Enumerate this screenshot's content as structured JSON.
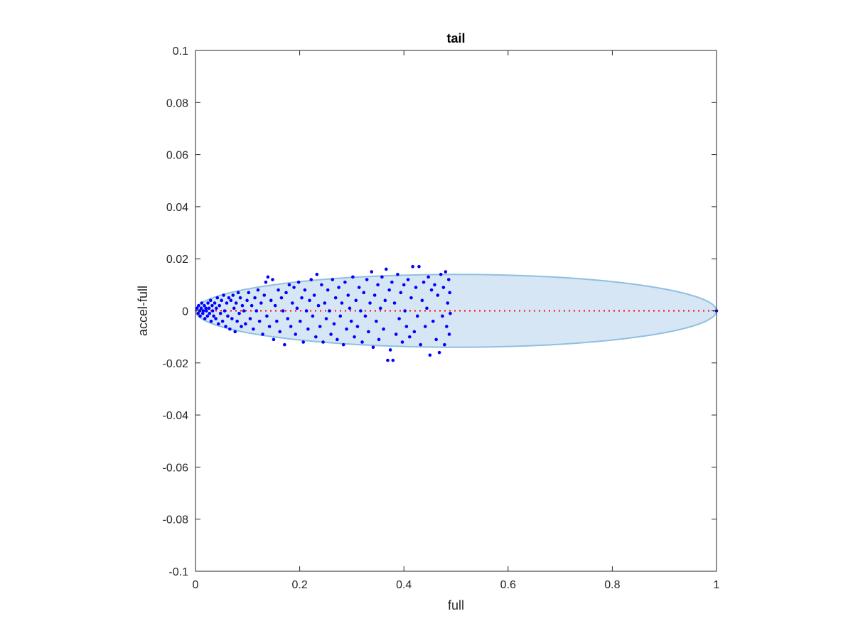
{
  "chart_data": {
    "type": "scatter",
    "title": "tail",
    "xlabel": "full",
    "ylabel": "accel-full",
    "xlim": [
      0,
      1
    ],
    "ylim": [
      -0.1,
      0.1
    ],
    "x_ticks": [
      0,
      0.2,
      0.4,
      0.6,
      0.8,
      1
    ],
    "x_tick_labels": [
      "0",
      "0.2",
      "0.4",
      "0.6",
      "0.8",
      "1"
    ],
    "y_ticks": [
      -0.1,
      -0.08,
      -0.06,
      -0.04,
      -0.02,
      0,
      0.02,
      0.04,
      0.06,
      0.08,
      0.1
    ],
    "y_tick_labels": [
      "-0.1",
      "-0.08",
      "-0.06",
      "-0.04",
      "-0.02",
      "0",
      "0.02",
      "0.04",
      "0.06",
      "0.08",
      "0.1"
    ],
    "grid": false,
    "box": true,
    "ellipse": {
      "center": [
        0.5,
        0
      ],
      "radius_x": 0.5,
      "radius_y": 0.014,
      "fill": "#d6e6f4",
      "stroke": "#8fbfe0"
    },
    "reference_line": {
      "y": 0,
      "x_range": [
        0,
        1
      ],
      "color": "#ff0000",
      "style": "dotted"
    },
    "series": [
      {
        "color": "#0000ff",
        "points": [
          [
            0.003,
            0.001
          ],
          [
            0.005,
            -0.001
          ],
          [
            0.006,
            0.002
          ],
          [
            0.008,
            0.0
          ],
          [
            0.009,
            -0.002
          ],
          [
            0.011,
            0.001
          ],
          [
            0.012,
            0.003
          ],
          [
            0.014,
            -0.001
          ],
          [
            0.015,
            0.0
          ],
          [
            0.017,
            0.002
          ],
          [
            0.018,
            -0.003
          ],
          [
            0.02,
            0.001
          ],
          [
            0.021,
            0.0
          ],
          [
            0.023,
            -0.002
          ],
          [
            0.024,
            0.003
          ],
          [
            0.026,
            0.001
          ],
          [
            0.027,
            -0.001
          ],
          [
            0.029,
            0.004
          ],
          [
            0.03,
            -0.004
          ],
          [
            0.032,
            0.002
          ],
          [
            0.033,
            0.0
          ],
          [
            0.035,
            -0.002
          ],
          [
            0.037,
            0.003
          ],
          [
            0.039,
            -0.003
          ],
          [
            0.04,
            0.001
          ],
          [
            0.042,
            0.005
          ],
          [
            0.044,
            -0.005
          ],
          [
            0.046,
            0.002
          ],
          [
            0.048,
            -0.001
          ],
          [
            0.05,
            0.004
          ],
          [
            0.052,
            -0.004
          ],
          [
            0.054,
            0.006
          ],
          [
            0.056,
            0.0
          ],
          [
            0.058,
            -0.006
          ],
          [
            0.06,
            0.003
          ],
          [
            0.062,
            -0.002
          ],
          [
            0.064,
            0.005
          ],
          [
            0.066,
            -0.007
          ],
          [
            0.068,
            0.004
          ],
          [
            0.07,
            -0.003
          ],
          [
            0.072,
            0.006
          ],
          [
            0.074,
            0.001
          ],
          [
            0.076,
            -0.008
          ],
          [
            0.078,
            0.003
          ],
          [
            0.08,
            -0.004
          ],
          [
            0.082,
            0.007
          ],
          [
            0.084,
            -0.001
          ],
          [
            0.086,
            0.005
          ],
          [
            0.088,
            -0.006
          ],
          [
            0.09,
            0.002
          ],
          [
            0.093,
            0.0
          ],
          [
            0.096,
            -0.005
          ],
          [
            0.099,
            0.004
          ],
          [
            0.102,
            0.007
          ],
          [
            0.105,
            -0.003
          ],
          [
            0.108,
            0.002
          ],
          [
            0.111,
            -0.007
          ],
          [
            0.114,
            0.005
          ],
          [
            0.117,
            0.0
          ],
          [
            0.12,
            0.008
          ],
          [
            0.123,
            -0.004
          ],
          [
            0.126,
            0.003
          ],
          [
            0.129,
            -0.009
          ],
          [
            0.132,
            0.006
          ],
          [
            0.135,
            0.011
          ],
          [
            0.137,
            -0.002
          ],
          [
            0.139,
            0.013
          ],
          [
            0.142,
            -0.006
          ],
          [
            0.145,
            0.004
          ],
          [
            0.148,
            0.012
          ],
          [
            0.15,
            -0.011
          ],
          [
            0.153,
            0.002
          ],
          [
            0.156,
            -0.004
          ],
          [
            0.159,
            0.008
          ],
          [
            0.162,
            -0.008
          ],
          [
            0.165,
            0.005
          ],
          [
            0.168,
            0.0
          ],
          [
            0.171,
            -0.013
          ],
          [
            0.174,
            0.007
          ],
          [
            0.177,
            -0.003
          ],
          [
            0.18,
            0.01
          ],
          [
            0.183,
            -0.006
          ],
          [
            0.186,
            0.003
          ],
          [
            0.189,
            0.009
          ],
          [
            0.192,
            -0.009
          ],
          [
            0.195,
            0.001
          ],
          [
            0.198,
            0.011
          ],
          [
            0.201,
            -0.004
          ],
          [
            0.204,
            0.005
          ],
          [
            0.207,
            -0.012
          ],
          [
            0.21,
            0.008
          ],
          [
            0.213,
            0.0
          ],
          [
            0.216,
            -0.007
          ],
          [
            0.219,
            0.004
          ],
          [
            0.222,
            0.012
          ],
          [
            0.225,
            -0.002
          ],
          [
            0.228,
            0.006
          ],
          [
            0.231,
            -0.01
          ],
          [
            0.233,
            0.014
          ],
          [
            0.236,
            0.002
          ],
          [
            0.239,
            -0.006
          ],
          [
            0.242,
            0.01
          ],
          [
            0.245,
            -0.012
          ],
          [
            0.248,
            0.003
          ],
          [
            0.251,
            -0.003
          ],
          [
            0.254,
            0.008
          ],
          [
            0.257,
            0.0
          ],
          [
            0.26,
            -0.009
          ],
          [
            0.263,
            0.012
          ],
          [
            0.266,
            -0.005
          ],
          [
            0.269,
            0.005
          ],
          [
            0.272,
            -0.011
          ],
          [
            0.275,
            0.009
          ],
          [
            0.278,
            -0.002
          ],
          [
            0.281,
            0.003
          ],
          [
            0.284,
            -0.013
          ],
          [
            0.287,
            0.011
          ],
          [
            0.29,
            -0.007
          ],
          [
            0.293,
            0.006
          ],
          [
            0.296,
            0.001
          ],
          [
            0.299,
            -0.004
          ],
          [
            0.302,
            0.013
          ],
          [
            0.305,
            -0.01
          ],
          [
            0.308,
            0.004
          ],
          [
            0.311,
            -0.006
          ],
          [
            0.314,
            0.009
          ],
          [
            0.317,
            0.0
          ],
          [
            0.32,
            -0.012
          ],
          [
            0.323,
            0.007
          ],
          [
            0.326,
            -0.002
          ],
          [
            0.329,
            0.012
          ],
          [
            0.332,
            -0.008
          ],
          [
            0.335,
            0.003
          ],
          [
            0.338,
            0.015
          ],
          [
            0.341,
            -0.014
          ],
          [
            0.344,
            0.006
          ],
          [
            0.347,
            -0.004
          ],
          [
            0.35,
            0.01
          ],
          [
            0.352,
            -0.011
          ],
          [
            0.355,
            0.001
          ],
          [
            0.358,
            0.013
          ],
          [
            0.361,
            -0.007
          ],
          [
            0.364,
            0.004
          ],
          [
            0.366,
            0.016
          ],
          [
            0.369,
            -0.019
          ],
          [
            0.372,
            0.008
          ],
          [
            0.374,
            -0.015
          ],
          [
            0.377,
            0.011
          ],
          [
            0.379,
            -0.019
          ],
          [
            0.382,
            0.003
          ],
          [
            0.385,
            -0.009
          ],
          [
            0.388,
            0.014
          ],
          [
            0.391,
            -0.003
          ],
          [
            0.394,
            0.007
          ],
          [
            0.397,
            -0.012
          ],
          [
            0.4,
            0.01
          ],
          [
            0.402,
            0.0
          ],
          [
            0.405,
            -0.006
          ],
          [
            0.408,
            0.012
          ],
          [
            0.411,
            -0.01
          ],
          [
            0.414,
            0.005
          ],
          [
            0.417,
            0.017
          ],
          [
            0.42,
            -0.008
          ],
          [
            0.423,
            0.009
          ],
          [
            0.426,
            -0.002
          ],
          [
            0.429,
            0.017
          ],
          [
            0.432,
            -0.013
          ],
          [
            0.435,
            0.004
          ],
          [
            0.438,
            0.011
          ],
          [
            0.441,
            -0.006
          ],
          [
            0.444,
            0.001
          ],
          [
            0.447,
            0.013
          ],
          [
            0.45,
            -0.017
          ],
          [
            0.453,
            0.008
          ],
          [
            0.456,
            -0.004
          ],
          [
            0.459,
            0.01
          ],
          [
            0.462,
            -0.011
          ],
          [
            0.465,
            0.006
          ],
          [
            0.468,
            -0.016
          ],
          [
            0.471,
            0.014
          ],
          [
            0.474,
            -0.002
          ],
          [
            0.476,
            0.009
          ],
          [
            0.478,
            -0.013
          ],
          [
            0.48,
            0.015
          ],
          [
            0.482,
            -0.006
          ],
          [
            0.484,
            0.003
          ],
          [
            0.486,
            0.012
          ],
          [
            0.487,
            -0.009
          ],
          [
            0.488,
            0.007
          ],
          [
            0.489,
            -0.001
          ],
          [
            1.0,
            0.0
          ]
        ]
      }
    ]
  }
}
